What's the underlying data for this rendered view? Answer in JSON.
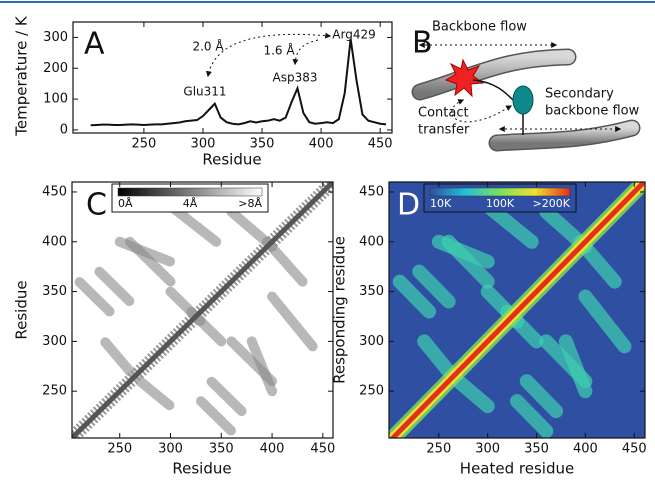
{
  "chart_data": [
    {
      "type": "line",
      "panel_label": "A",
      "xlabel": "Residue",
      "ylabel": "Temperature / K",
      "x": [
        205,
        210,
        215,
        220,
        225,
        230,
        235,
        240,
        245,
        250,
        255,
        260,
        265,
        270,
        275,
        280,
        285,
        290,
        295,
        300,
        305,
        310,
        315,
        320,
        325,
        330,
        335,
        340,
        345,
        350,
        355,
        360,
        365,
        370,
        375,
        380,
        385,
        390,
        395,
        400,
        405,
        410,
        415,
        420,
        425,
        430,
        435,
        440,
        445,
        450,
        455
      ],
      "values": [
        15,
        16,
        17,
        17,
        16,
        16,
        17,
        18,
        17,
        16,
        17,
        18,
        18,
        20,
        22,
        24,
        28,
        30,
        32,
        45,
        65,
        85,
        40,
        25,
        20,
        18,
        22,
        28,
        24,
        28,
        30,
        35,
        30,
        40,
        90,
        135,
        55,
        25,
        20,
        22,
        25,
        22,
        35,
        120,
        295,
        160,
        50,
        30,
        25,
        20,
        18
      ],
      "color": "#111111",
      "xlim": [
        190,
        460
      ],
      "ylim": [
        -10,
        350
      ],
      "xticks": [
        250,
        300,
        350,
        400,
        450
      ],
      "yticks": [
        0,
        100,
        200,
        300
      ],
      "annotations": [
        "2.0 Å",
        "1.6 Å",
        "Glu311",
        "Asp383",
        "Arg429"
      ]
    },
    {
      "type": "contact-map",
      "panel_label": "C",
      "xlabel": "Residue",
      "ylabel": "Residue",
      "xlim": [
        203,
        460
      ],
      "ylim": [
        203,
        460
      ],
      "xticks": [
        250,
        300,
        350,
        400,
        450
      ],
      "yticks": [
        250,
        300,
        350,
        400,
        450
      ],
      "background": "#ffffff",
      "diagonal_color": "#555555",
      "contact_color": "#8a8a8a",
      "colorbar_colors": [
        "#000000",
        "#ffffff"
      ],
      "colorbar_labels": [
        "0Å",
        "4Å",
        ">8Å"
      ],
      "contacts": [
        [
          295,
          440,
          345,
          400
        ],
        [
          360,
          430,
          400,
          395
        ],
        [
          230,
          370,
          260,
          340
        ],
        [
          300,
          350,
          330,
          320
        ],
        [
          250,
          400,
          300,
          380
        ],
        [
          360,
          300,
          400,
          260
        ],
        [
          330,
          240,
          360,
          210
        ],
        [
          270,
          260,
          300,
          235
        ]
      ]
    },
    {
      "type": "contact-map",
      "panel_label": "D",
      "xlabel": "Heated residue",
      "ylabel": "Responding residue",
      "xlim": [
        199,
        461
      ],
      "ylim": [
        203,
        460
      ],
      "xticks": [
        250,
        300,
        350,
        400,
        450
      ],
      "yticks": [
        250,
        300,
        350,
        400,
        450
      ],
      "background": "#2f4fa3",
      "diagonal_color": "#e0301e",
      "contact_color": "#3fd0b0",
      "colorbar_colors": [
        "#2f4fa3",
        "#22c0d8",
        "#7ce060",
        "#f0e030",
        "#e03020"
      ],
      "colorbar_labels": [
        "10K",
        "100K",
        ">200K"
      ],
      "contacts": [
        [
          295,
          440,
          345,
          400
        ],
        [
          360,
          430,
          400,
          395
        ],
        [
          230,
          370,
          260,
          340
        ],
        [
          300,
          350,
          330,
          320
        ],
        [
          250,
          400,
          300,
          380
        ],
        [
          360,
          300,
          400,
          260
        ],
        [
          330,
          240,
          360,
          210
        ],
        [
          270,
          260,
          300,
          235
        ]
      ]
    }
  ],
  "diagram": {
    "panel_label": "B",
    "backbone": "Backbone flow",
    "contact": [
      "Contact",
      "transfer"
    ],
    "secondary": [
      "Secondary",
      "backbone flow"
    ]
  }
}
